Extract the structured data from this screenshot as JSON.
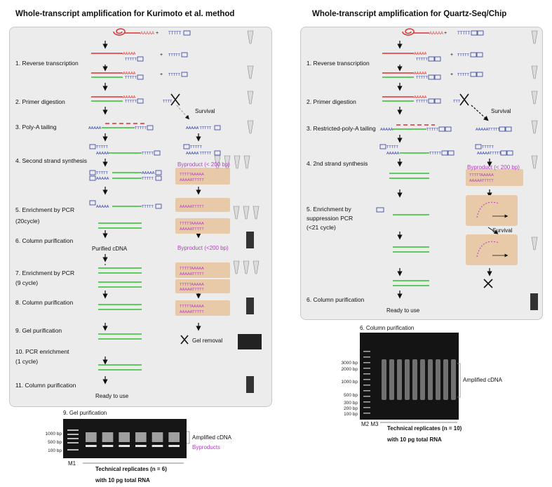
{
  "left": {
    "title": "Whole-transcript amplification for Kurimoto et al. method",
    "steps": [
      "1. Reverse transcription",
      "2. Primer digestion",
      "3. Poly-A tailing",
      "4. Second strand synthesis",
      "5. Enrichment by PCR",
      "(20cycle)",
      "6. Column purification",
      "7. Enrichment by PCR",
      "(9 cycle)",
      "8. Column purification",
      "9. Gel purification",
      "10. PCR enrichment",
      "(1 cycle)",
      "11. Column purification"
    ],
    "survival": "Survival",
    "byproduct_1": "Byproduct (< 200 bp)",
    "byproduct_2": "Byproduct (<200 bp)",
    "purified": "Purified cDNA",
    "gel_removal": "Gel removal",
    "ready": "Ready to use"
  },
  "right": {
    "title": "Whole-transcript amplification for Quartz-Seq/Chip",
    "steps": [
      "1. Reverse transcription",
      "2. Primer digestion",
      "3. Restricted-poly-A tailing",
      "4. 2nd strand synthesis",
      "5. Enrichment by",
      "suppression PCR",
      "(<21 cycle)",
      "6. Column purification"
    ],
    "survival_1": "Survival",
    "survival_2": "Survival",
    "byproduct": "Byproduct (< 200 bp)",
    "ready": "Ready to use"
  },
  "seq": {
    "polyA": "AAAAA",
    "polyT": "TTTTT",
    "plus": "+",
    "tag_v": "V3",
    "tag_v1": "V1",
    "tag_v2": "V2",
    "tag_v3": "V3"
  },
  "gel_left": {
    "heading": "9. Gel purification",
    "ladder_name": "M1",
    "bp_labels": [
      "1000 bp",
      "500 bp",
      "100 bp"
    ],
    "amplified": "Amplified cDNA",
    "byproducts": "Byproducts",
    "replicates": "Technical replicates (n = 6)",
    "input": "with 10 pg total RNA",
    "lanes": 6
  },
  "gel_right": {
    "heading": "6. Column purification",
    "ladder_name": "M2 M3",
    "bp_labels": [
      "3000 bp",
      "2000 bp",
      "1000 bp",
      "500 bp",
      "300 bp",
      "200 bp",
      "100 bp"
    ],
    "amplified": "Amplified cDNA",
    "replicates": "Technical replicates (n = 10)",
    "input": "with 10 pg total RNA",
    "lanes": 10
  },
  "colors": {
    "rna": "#e03030",
    "cdna": "#30c030",
    "primer": "#2a3a9a",
    "byproduct_text": "#b040c0",
    "byproduct_box": "#e8c9a8",
    "panel": "#ececec"
  }
}
